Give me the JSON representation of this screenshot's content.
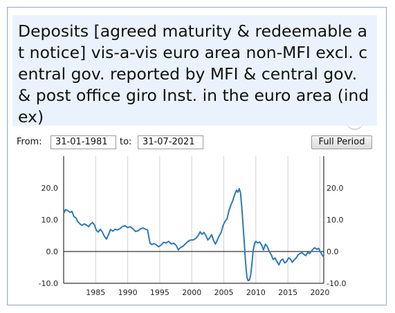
{
  "header": {
    "title": "Deposits [agreed maturity & redeemable at notice] vis-a-vis euro area non-MFI excl. central gov. reported by MFI & central gov. & post office giro Inst. in the euro area (index)"
  },
  "controls": {
    "from_label": "From:",
    "from_value": "31-01-1981",
    "to_label": "to:",
    "to_value": "31-07-2021",
    "full_period_label": "Full Period"
  },
  "chart_data": {
    "type": "line",
    "xlim": [
      1980.0,
      2020.6
    ],
    "ylim": [
      -10,
      30
    ],
    "x_ticks": [
      1985,
      1990,
      1995,
      2000,
      2005,
      2010,
      2015,
      2020
    ],
    "x_tick_labels": [
      "1985",
      "1990",
      "1995",
      "2000",
      "2005",
      "2010",
      "2015",
      "2020"
    ],
    "y_ticks": [
      -10,
      0,
      10,
      20
    ],
    "y_tick_labels": [
      "-10.0",
      "0.0",
      "10.0",
      "20.0"
    ],
    "grid": "vertical",
    "zero_line": true,
    "color": "#2e78b7",
    "series": [
      {
        "points": [
          [
            1980.0,
            12.0
          ],
          [
            1980.3,
            13.2
          ],
          [
            1980.7,
            12.8
          ],
          [
            1981.0,
            12.3
          ],
          [
            1981.3,
            12.6
          ],
          [
            1981.6,
            11.0
          ],
          [
            1981.9,
            10.6
          ],
          [
            1982.2,
            9.4
          ],
          [
            1982.6,
            8.6
          ],
          [
            1982.9,
            8.2
          ],
          [
            1983.2,
            8.7
          ],
          [
            1983.6,
            8.3
          ],
          [
            1983.9,
            7.8
          ],
          [
            1984.2,
            8.6
          ],
          [
            1984.5,
            9.1
          ],
          [
            1984.8,
            8.4
          ],
          [
            1985.1,
            6.7
          ],
          [
            1985.4,
            6.1
          ],
          [
            1985.7,
            7.0
          ],
          [
            1986.0,
            6.3
          ],
          [
            1986.3,
            5.0
          ],
          [
            1986.7,
            3.9
          ],
          [
            1987.0,
            5.3
          ],
          [
            1987.3,
            6.9
          ],
          [
            1987.7,
            6.4
          ],
          [
            1988.0,
            7.0
          ],
          [
            1988.4,
            6.8
          ],
          [
            1988.8,
            7.2
          ],
          [
            1989.2,
            7.9
          ],
          [
            1989.6,
            8.1
          ],
          [
            1990.0,
            7.5
          ],
          [
            1990.4,
            7.8
          ],
          [
            1990.8,
            7.2
          ],
          [
            1991.2,
            6.3
          ],
          [
            1991.6,
            6.5
          ],
          [
            1992.0,
            7.1
          ],
          [
            1992.4,
            7.4
          ],
          [
            1992.8,
            7.0
          ],
          [
            1993.1,
            6.8
          ],
          [
            1993.3,
            4.5
          ],
          [
            1993.5,
            2.5
          ],
          [
            1993.8,
            2.2
          ],
          [
            1994.1,
            2.5
          ],
          [
            1994.4,
            2.2
          ],
          [
            1994.8,
            1.5
          ],
          [
            1995.2,
            2.0
          ],
          [
            1995.6,
            2.9
          ],
          [
            1996.0,
            2.7
          ],
          [
            1996.4,
            3.2
          ],
          [
            1996.8,
            2.4
          ],
          [
            1997.2,
            2.6
          ],
          [
            1997.6,
            1.8
          ],
          [
            1997.9,
            0.5
          ],
          [
            1998.2,
            1.2
          ],
          [
            1998.6,
            1.6
          ],
          [
            1999.0,
            2.4
          ],
          [
            1999.4,
            3.2
          ],
          [
            1999.8,
            3.6
          ],
          [
            2000.2,
            3.6
          ],
          [
            2000.6,
            4.1
          ],
          [
            2001.0,
            5.0
          ],
          [
            2001.3,
            6.2
          ],
          [
            2001.6,
            5.4
          ],
          [
            2001.9,
            6.0
          ],
          [
            2002.2,
            5.0
          ],
          [
            2002.5,
            3.6
          ],
          [
            2002.8,
            4.3
          ],
          [
            2003.1,
            5.3
          ],
          [
            2003.4,
            3.5
          ],
          [
            2003.7,
            2.3
          ],
          [
            2004.0,
            3.7
          ],
          [
            2004.3,
            5.0
          ],
          [
            2004.6,
            6.0
          ],
          [
            2004.9,
            8.3
          ],
          [
            2005.2,
            9.5
          ],
          [
            2005.5,
            10.3
          ],
          [
            2005.8,
            12.8
          ],
          [
            2006.1,
            14.6
          ],
          [
            2006.4,
            16.0
          ],
          [
            2006.7,
            18.0
          ],
          [
            2007.0,
            19.3
          ],
          [
            2007.2,
            18.6
          ],
          [
            2007.4,
            19.8
          ],
          [
            2007.6,
            18.5
          ],
          [
            2007.8,
            14.0
          ],
          [
            2008.0,
            8.5
          ],
          [
            2008.2,
            2.5
          ],
          [
            2008.4,
            -3.5
          ],
          [
            2008.6,
            -8.0
          ],
          [
            2008.8,
            -9.2
          ],
          [
            2009.0,
            -9.0
          ],
          [
            2009.2,
            -7.4
          ],
          [
            2009.4,
            -3.5
          ],
          [
            2009.6,
            0.5
          ],
          [
            2009.8,
            2.5
          ],
          [
            2010.0,
            3.2
          ],
          [
            2010.3,
            2.7
          ],
          [
            2010.6,
            3.0
          ],
          [
            2010.9,
            2.0
          ],
          [
            2011.2,
            0.5
          ],
          [
            2011.5,
            2.3
          ],
          [
            2011.8,
            1.5
          ],
          [
            2012.1,
            0.0
          ],
          [
            2012.4,
            -1.0
          ],
          [
            2012.7,
            -2.5
          ],
          [
            2013.0,
            -2.0
          ],
          [
            2013.3,
            -3.2
          ],
          [
            2013.6,
            -4.2
          ],
          [
            2013.9,
            -2.8
          ],
          [
            2014.2,
            -2.4
          ],
          [
            2014.5,
            -3.6
          ],
          [
            2014.8,
            -3.2
          ],
          [
            2015.1,
            -2.0
          ],
          [
            2015.4,
            -2.4
          ],
          [
            2015.7,
            -3.4
          ],
          [
            2016.0,
            -2.6
          ],
          [
            2016.3,
            -2.0
          ],
          [
            2016.6,
            -1.0
          ],
          [
            2016.9,
            -0.6
          ],
          [
            2017.2,
            -0.4
          ],
          [
            2017.5,
            -0.9
          ],
          [
            2017.8,
            -1.3
          ],
          [
            2018.1,
            -0.3
          ],
          [
            2018.4,
            -0.6
          ],
          [
            2018.7,
            0.2
          ],
          [
            2019.0,
            0.9
          ],
          [
            2019.2,
            1.2
          ],
          [
            2019.5,
            0.7
          ],
          [
            2019.8,
            1.0
          ],
          [
            2020.0,
            0.2
          ],
          [
            2020.2,
            -0.5
          ],
          [
            2020.4,
            -1.3
          ],
          [
            2020.6,
            -1.6
          ]
        ]
      }
    ]
  }
}
